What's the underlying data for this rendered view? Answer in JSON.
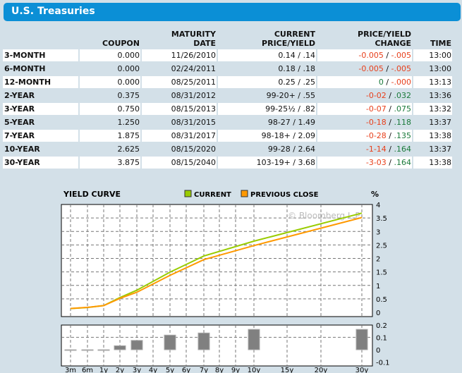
{
  "title": "U.S. Treasuries",
  "columns": [
    "",
    "COUPON",
    "MATURITY DATE",
    "CURRENT PRICE/YIELD",
    "PRICE/YIELD CHANGE",
    "TIME"
  ],
  "rows": [
    {
      "name": "3-MONTH",
      "coupon": "0.000",
      "maturity": "11/26/2010",
      "price_yield": "0.14 / .14",
      "price_change": "-0.005",
      "yield_change": "-.005",
      "time": "13:00"
    },
    {
      "name": "6-MONTH",
      "coupon": "0.000",
      "maturity": "02/24/2011",
      "price_yield": "0.18 / .18",
      "price_change": "-0.005",
      "yield_change": "-.005",
      "time": "13:00"
    },
    {
      "name": "12-MONTH",
      "coupon": "0.000",
      "maturity": "08/25/2011",
      "price_yield": "0.25 / .25",
      "price_change": "0",
      "yield_change": "-.000",
      "time": "13:13"
    },
    {
      "name": "2-YEAR",
      "coupon": "0.375",
      "maturity": "08/31/2012",
      "price_yield": "99-20+ / .55",
      "price_change": "-0-02",
      "yield_change": ".032",
      "time": "13:36"
    },
    {
      "name": "3-YEAR",
      "coupon": "0.750",
      "maturity": "08/15/2013",
      "price_yield": "99-25½ / .82",
      "price_change": "-0-07",
      "yield_change": ".075",
      "time": "13:32"
    },
    {
      "name": "5-YEAR",
      "coupon": "1.250",
      "maturity": "08/31/2015",
      "price_yield": "98-27 / 1.49",
      "price_change": "-0-18",
      "yield_change": ".118",
      "time": "13:37"
    },
    {
      "name": "7-YEAR",
      "coupon": "1.875",
      "maturity": "08/31/2017",
      "price_yield": "98-18+ / 2.09",
      "price_change": "-0-28",
      "yield_change": ".135",
      "time": "13:38"
    },
    {
      "name": "10-YEAR",
      "coupon": "2.625",
      "maturity": "08/15/2020",
      "price_yield": "99-28 / 2.64",
      "price_change": "-1-14",
      "yield_change": ".164",
      "time": "13:37"
    },
    {
      "name": "30-YEAR",
      "coupon": "3.875",
      "maturity": "08/15/2040",
      "price_yield": "103-19+ / 3.68",
      "price_change": "-3-03",
      "yield_change": ".164",
      "time": "13:38"
    }
  ],
  "colors": {
    "header": "#0b8fd6",
    "negative": "#e8401c",
    "positive": "#1a7a3a",
    "current": "#99cc00",
    "previous": "#ff9900",
    "bar": "#808080"
  },
  "chart_data": {
    "type": "line",
    "title": "YIELD CURVE",
    "unit_label": "%",
    "watermark": "© Bloomberg L.P.",
    "x_ticks": [
      "3m",
      "6m",
      "1y",
      "2y",
      "3y",
      "4y",
      "5y",
      "6y",
      "7y",
      "8y",
      "9y",
      "10y",
      "15y",
      "20y",
      "30y"
    ],
    "ylim": [
      0,
      4
    ],
    "y_ticks": [
      "0",
      "0.5",
      "1",
      "1.5",
      "2",
      "2.5",
      "3",
      "3.5",
      "4"
    ],
    "grid": true,
    "series": [
      {
        "name": "CURRENT",
        "x": [
          "3m",
          "6m",
          "1y",
          "2y",
          "3y",
          "5y",
          "7y",
          "10y",
          "30y"
        ],
        "values": [
          0.14,
          0.18,
          0.25,
          0.55,
          0.82,
          1.49,
          2.09,
          2.64,
          3.68
        ]
      },
      {
        "name": "PREVIOUS CLOSE",
        "x": [
          "3m",
          "6m",
          "1y",
          "2y",
          "3y",
          "5y",
          "7y",
          "10y",
          "30y"
        ],
        "values": [
          0.145,
          0.185,
          0.25,
          0.518,
          0.745,
          1.372,
          1.955,
          2.476,
          3.516
        ]
      }
    ],
    "change": {
      "type": "bar",
      "ylim": [
        -0.1,
        0.2
      ],
      "y_ticks": [
        "0.2",
        "0.1",
        "0",
        "-0.1"
      ],
      "x": [
        "3m",
        "6m",
        "1y",
        "2y",
        "3y",
        "5y",
        "7y",
        "10y",
        "30y"
      ],
      "values": [
        -0.005,
        -0.005,
        0,
        0.032,
        0.075,
        0.118,
        0.135,
        0.164,
        0.164
      ]
    }
  }
}
